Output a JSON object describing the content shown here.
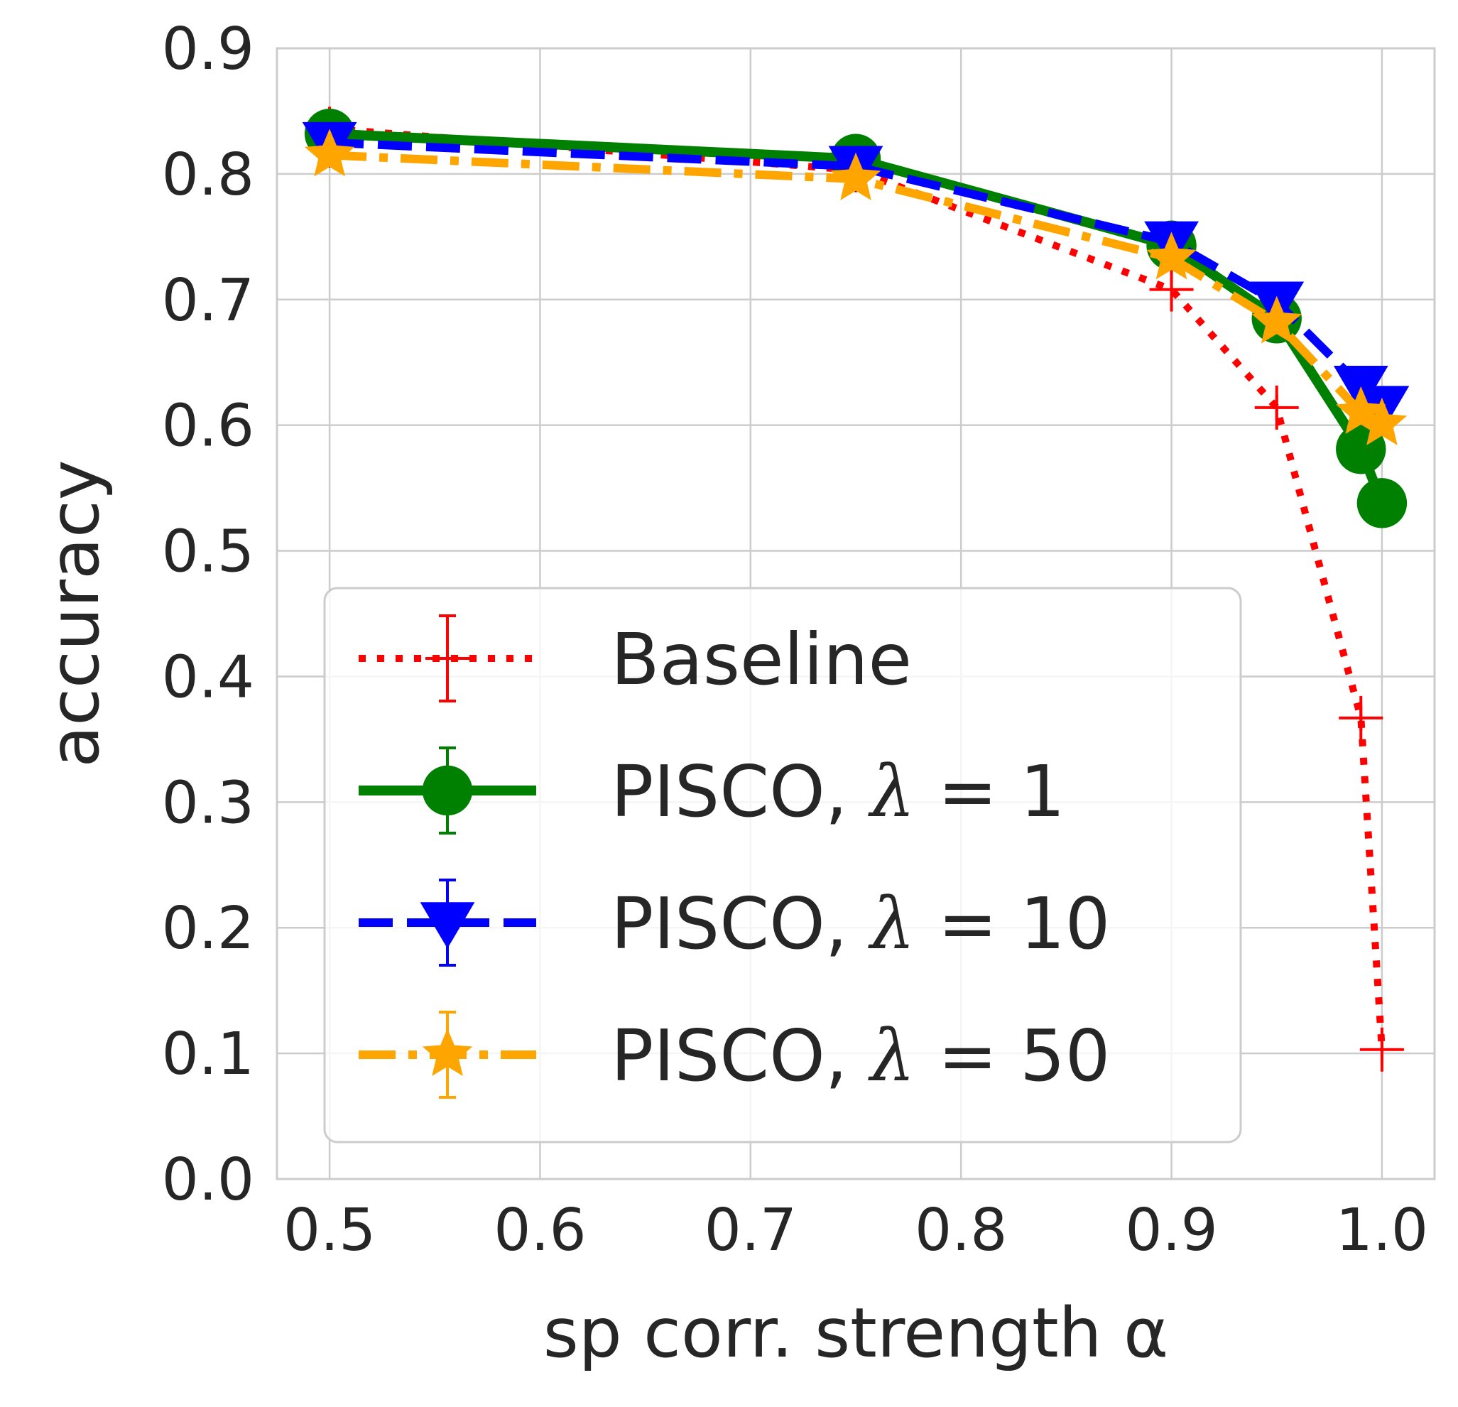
{
  "chart_data": {
    "type": "line",
    "xlabel": "sp corr. strength α",
    "ylabel": "accuracy",
    "xlim": [
      0.475,
      1.025
    ],
    "ylim": [
      0.0,
      0.9
    ],
    "xticks": [
      0.5,
      0.6,
      0.7,
      0.8,
      0.9,
      1.0
    ],
    "xtick_labels": [
      "0.5",
      "0.6",
      "0.7",
      "0.8",
      "0.9",
      "1.0"
    ],
    "yticks": [
      0.0,
      0.1,
      0.2,
      0.3,
      0.4,
      0.5,
      0.6,
      0.7,
      0.8,
      0.9
    ],
    "ytick_labels": [
      "0.0",
      "0.1",
      "0.2",
      "0.3",
      "0.4",
      "0.5",
      "0.6",
      "0.7",
      "0.8",
      "0.9"
    ],
    "grid": true,
    "legend_position": "lower-left",
    "series": [
      {
        "name": "Baseline",
        "label_prefix": "Baseline",
        "label_value": "",
        "color": "#ff0000",
        "linestyle": "dotted",
        "marker": "plus",
        "x": [
          0.5,
          0.75,
          0.9,
          0.95,
          0.99,
          1.0
        ],
        "y": [
          0.836,
          0.803,
          0.708,
          0.614,
          0.367,
          0.103
        ],
        "err": [
          0.004,
          0.004,
          0.008,
          0.01,
          0.01,
          0.01
        ]
      },
      {
        "name": "PISCO, λ = 1",
        "label_prefix": "PISCO, ",
        "label_value": "1",
        "color": "#008000",
        "linestyle": "solid",
        "marker": "circle",
        "x": [
          0.5,
          0.75,
          0.9,
          0.95,
          0.99,
          1.0
        ],
        "y": [
          0.832,
          0.812,
          0.743,
          0.685,
          0.581,
          0.538
        ],
        "err": [
          0.004,
          0.004,
          0.005,
          0.006,
          0.008,
          0.01
        ]
      },
      {
        "name": "PISCO, λ = 10",
        "label_prefix": "PISCO, ",
        "label_value": "10",
        "color": "#0000ff",
        "linestyle": "dashed",
        "marker": "triangle-down",
        "x": [
          0.5,
          0.75,
          0.9,
          0.95,
          0.99,
          1.0
        ],
        "y": [
          0.825,
          0.806,
          0.746,
          0.698,
          0.631,
          0.615
        ],
        "err": [
          0.004,
          0.004,
          0.005,
          0.006,
          0.007,
          0.008
        ]
      },
      {
        "name": "PISCO, λ = 50",
        "label_prefix": "PISCO, ",
        "label_value": "50",
        "color": "#ffa500",
        "linestyle": "dashdot",
        "marker": "star",
        "x": [
          0.5,
          0.75,
          0.9,
          0.95,
          0.99,
          1.0
        ],
        "y": [
          0.815,
          0.796,
          0.733,
          0.682,
          0.61,
          0.601
        ],
        "err": [
          0.004,
          0.004,
          0.005,
          0.006,
          0.007,
          0.008
        ]
      }
    ]
  }
}
